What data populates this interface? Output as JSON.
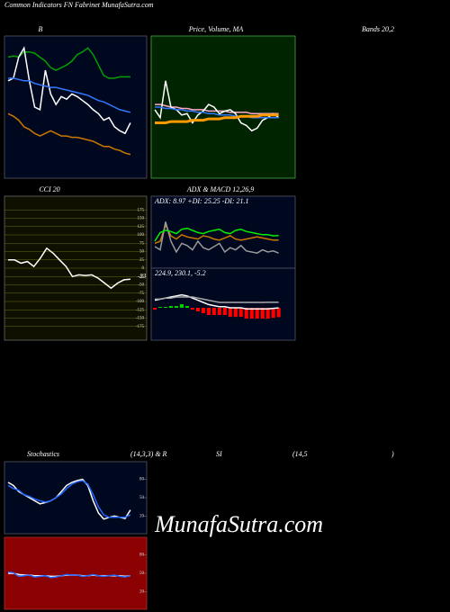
{
  "header": "Common Indicators FN Fabrinet MunafaSutra.com",
  "watermark": "MunafaSutra.com",
  "chart_data": [
    {
      "type": "line",
      "title": "B",
      "title_right": "Bands 20,2",
      "ylim": [
        0,
        100
      ],
      "series": [
        {
          "color": "#00a000",
          "values": [
            88,
            89,
            88,
            92,
            92,
            91,
            88,
            85,
            80,
            78,
            80,
            82,
            85,
            90,
            92,
            95,
            90,
            82,
            74,
            72,
            72,
            73,
            73,
            73
          ]
        },
        {
          "color": "#ffffff",
          "values": [
            70,
            72,
            88,
            95,
            70,
            50,
            48,
            78,
            60,
            52,
            58,
            56,
            60,
            58,
            55,
            52,
            48,
            45,
            40,
            42,
            35,
            32,
            30,
            38
          ]
        },
        {
          "color": "#3377ff",
          "values": [
            72,
            72,
            71,
            70,
            70,
            68,
            67,
            66,
            65,
            65,
            64,
            63,
            62,
            61,
            60,
            59,
            57,
            55,
            54,
            52,
            50,
            48,
            47,
            46
          ]
        },
        {
          "color": "#cc7700",
          "values": [
            45,
            43,
            40,
            35,
            33,
            30,
            28,
            30,
            32,
            30,
            28,
            28,
            27,
            27,
            26,
            25,
            24,
            22,
            20,
            20,
            18,
            17,
            15,
            14
          ]
        }
      ]
    },
    {
      "type": "line",
      "title": "Price, Volume, MA",
      "ylim": [
        0,
        100
      ],
      "series": [
        {
          "color": "#ffaacc",
          "values": [
            52,
            52,
            51,
            50,
            50,
            49,
            49,
            48,
            48,
            48,
            47,
            47,
            47,
            47,
            46,
            46,
            46,
            46,
            45,
            45,
            45,
            45,
            45,
            45
          ]
        },
        {
          "color": "#ffffff",
          "values": [
            48,
            42,
            70,
            50,
            48,
            44,
            45,
            38,
            44,
            47,
            52,
            50,
            45,
            47,
            48,
            45,
            38,
            36,
            32,
            34,
            40,
            42,
            45,
            42
          ]
        },
        {
          "color": "#3377ff",
          "values": [
            50,
            50,
            49,
            49,
            48,
            48,
            47,
            47,
            46,
            46,
            45,
            45,
            44,
            44,
            44,
            43,
            43,
            43,
            42,
            42,
            42,
            42,
            42,
            42
          ]
        },
        {
          "color": "#ff9900",
          "values": [
            38,
            38,
            38,
            39,
            39,
            39,
            39,
            40,
            40,
            40,
            41,
            41,
            41,
            42,
            42,
            42,
            43,
            43,
            43,
            43,
            44,
            44,
            44,
            44
          ]
        }
      ]
    },
    {
      "type": "line",
      "title": "CCI 20",
      "ylim": [
        -200,
        200
      ],
      "grid": true,
      "yticks": [
        175,
        150,
        125,
        100,
        75,
        50,
        25,
        0,
        -25,
        -50,
        -75,
        -100,
        -125,
        -150,
        -175
      ],
      "series": [
        {
          "color": "#ffffff",
          "values": [
            25,
            25,
            15,
            20,
            5,
            30,
            60,
            45,
            25,
            5,
            -25,
            -20,
            -22,
            -20,
            -30,
            -45,
            -60,
            -45,
            -35,
            -33
          ]
        }
      ]
    },
    {
      "type": "line",
      "title": "ADX  & MACD 12,26,9",
      "subtitle": "ADX: 8.97 +DI: 25.25 -DI: 21.1",
      "ylim": [
        0,
        50
      ],
      "series": [
        {
          "color": "#cc7700",
          "values": [
            18,
            20,
            35,
            25,
            22,
            26,
            24,
            23,
            22,
            25,
            24,
            22,
            21,
            23,
            25,
            22,
            21,
            22,
            23,
            24,
            23,
            22,
            21,
            21.1
          ]
        },
        {
          "color": "#999999",
          "values": [
            15,
            12,
            38,
            20,
            10,
            18,
            16,
            12,
            20,
            14,
            12,
            15,
            18,
            10,
            14,
            12,
            16,
            11,
            10,
            9,
            12,
            10,
            11,
            8.97
          ]
        },
        {
          "color": "#00ee00",
          "values": [
            20,
            28,
            30,
            29,
            27,
            31,
            32,
            30,
            28,
            27,
            29,
            30,
            31,
            28,
            27,
            30,
            31,
            29,
            28,
            27,
            26,
            26,
            25,
            25.25
          ]
        }
      ]
    },
    {
      "type": "macd",
      "subtitle": "224.9, 230.1, -5.2",
      "ylim": [
        200,
        250
      ],
      "y2lim": [
        -15,
        15
      ],
      "series": [
        {
          "color": "#ff0000",
          "axis": "y2",
          "values": [
            -1,
            0.5,
            0.5,
            1,
            1,
            2,
            1,
            -1,
            -2,
            -3,
            -4,
            -4,
            -4,
            -4,
            -5,
            -5,
            -5,
            -6,
            -6,
            -6,
            -6,
            -6,
            -5.6,
            -5.2
          ]
        },
        {
          "color": "#ffffff",
          "values": [
            232,
            233,
            234,
            235,
            236,
            237,
            236,
            234,
            232,
            230,
            228,
            227,
            226,
            226,
            225,
            225,
            225,
            224,
            224,
            224,
            224,
            224,
            224.5,
            224.9
          ]
        },
        {
          "color": "#aaaaaa",
          "values": [
            233,
            233,
            234,
            234,
            235,
            235,
            235,
            235,
            234,
            233,
            232,
            231,
            230,
            230,
            230,
            230,
            230,
            230,
            230,
            230,
            230,
            230.1,
            230.1,
            230.1
          ]
        }
      ]
    },
    {
      "type": "line",
      "title_parts": [
        "Stochastics",
        "(14,3,3) & R",
        "SI",
        "(14,5",
        ")"
      ],
      "ylim": [
        0,
        100
      ],
      "yticks": [
        80,
        50,
        20
      ],
      "series": [
        {
          "color": "#ffffff",
          "values": [
            75,
            70,
            60,
            55,
            50,
            45,
            40,
            42,
            45,
            50,
            60,
            70,
            75,
            78,
            80,
            70,
            45,
            25,
            15,
            18,
            20,
            18,
            16,
            30
          ]
        },
        {
          "color": "#2266ff",
          "values": [
            70,
            65,
            62,
            55,
            52,
            48,
            45,
            43,
            45,
            50,
            56,
            65,
            72,
            76,
            78,
            72,
            55,
            35,
            22,
            18,
            18,
            18,
            18,
            22
          ]
        }
      ]
    },
    {
      "type": "line",
      "ylim": [
        0,
        100
      ],
      "yticks": [
        80,
        50,
        20
      ],
      "series": [
        {
          "color": "#ffffff",
          "values": [
            50,
            50,
            48,
            47,
            47,
            46,
            46,
            46,
            45,
            45,
            46,
            47,
            47,
            47,
            46,
            46,
            47,
            46,
            46,
            46,
            46,
            46,
            45,
            46
          ]
        },
        {
          "color": "#2266ff",
          "values": [
            52,
            51,
            45,
            46,
            47,
            44,
            45,
            46,
            43,
            44,
            46,
            48,
            47,
            47,
            45,
            46,
            48,
            46,
            45,
            46,
            47,
            45,
            44,
            46
          ]
        }
      ]
    }
  ]
}
